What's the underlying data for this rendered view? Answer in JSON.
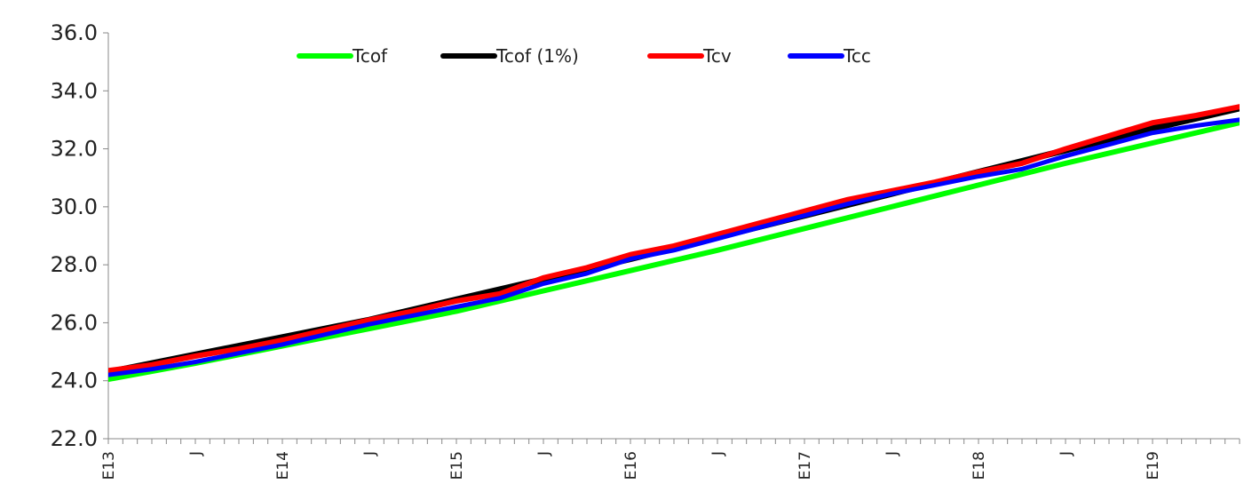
{
  "chart_data": {
    "type": "line",
    "title": "",
    "xlabel": "",
    "ylabel": "",
    "ylim": [
      22.0,
      36.0
    ],
    "y_ticks": [
      "22.0",
      "24.0",
      "26.0",
      "28.0",
      "30.0",
      "32.0",
      "34.0",
      "36.0"
    ],
    "x_tick_labels": [
      {
        "text": "E13",
        "x": 0
      },
      {
        "text": "J",
        "x": 0.5
      },
      {
        "text": "E14",
        "x": 1
      },
      {
        "text": "J",
        "x": 1.5
      },
      {
        "text": "E15",
        "x": 2
      },
      {
        "text": "J",
        "x": 2.5
      },
      {
        "text": "E16",
        "x": 3
      },
      {
        "text": "J",
        "x": 3.5
      },
      {
        "text": "E17",
        "x": 4
      },
      {
        "text": "J",
        "x": 4.5
      },
      {
        "text": "E18",
        "x": 5
      },
      {
        "text": "J",
        "x": 5.5
      },
      {
        "text": "E19",
        "x": 6
      }
    ],
    "x_range": [
      0,
      6.5
    ],
    "grid": false,
    "legend_position": "top",
    "series": [
      {
        "name": "Tcof",
        "color": "#00ff00",
        "x": [
          0,
          0.5,
          1,
          1.5,
          2,
          2.5,
          3,
          3.5,
          4,
          4.5,
          5,
          5.5,
          6,
          6.5
        ],
        "y": [
          24.05,
          24.6,
          25.2,
          25.8,
          26.4,
          27.1,
          27.8,
          28.5,
          29.25,
          30.0,
          30.75,
          31.5,
          32.2,
          32.9
        ]
      },
      {
        "name": "Tcof (1%)",
        "color": "#000000",
        "x": [
          0,
          0.5,
          1,
          1.5,
          2,
          2.5,
          3,
          3.5,
          4,
          4.5,
          5,
          5.5,
          6,
          6.5
        ],
        "y": [
          24.3,
          24.9,
          25.5,
          26.1,
          26.8,
          27.5,
          28.2,
          28.95,
          29.7,
          30.45,
          31.2,
          31.95,
          32.7,
          33.4
        ]
      },
      {
        "name": "Tcv",
        "color": "#ff0000",
        "x": [
          0,
          0.25,
          0.5,
          0.75,
          1,
          1.25,
          1.5,
          1.75,
          2,
          2.25,
          2.5,
          2.75,
          3,
          3.25,
          3.5,
          3.75,
          4,
          4.25,
          4.5,
          4.75,
          5,
          5.25,
          5.5,
          5.75,
          6,
          6.25,
          6.5
        ],
        "y": [
          24.35,
          24.55,
          24.85,
          25.1,
          25.4,
          25.75,
          26.1,
          26.4,
          26.75,
          27.0,
          27.55,
          27.9,
          28.35,
          28.65,
          29.05,
          29.45,
          29.85,
          30.25,
          30.55,
          30.85,
          31.2,
          31.5,
          32.0,
          32.45,
          32.9,
          33.15,
          33.45
        ]
      },
      {
        "name": "Tcc",
        "color": "#0000ff",
        "x": [
          0,
          0.25,
          0.5,
          0.75,
          1,
          1.25,
          1.5,
          1.75,
          2,
          2.25,
          2.5,
          2.75,
          3,
          3.25,
          3.5,
          3.75,
          4,
          4.25,
          4.5,
          4.75,
          5,
          5.25,
          5.5,
          5.75,
          6,
          6.25,
          6.5
        ],
        "y": [
          24.2,
          24.4,
          24.65,
          24.95,
          25.25,
          25.6,
          25.95,
          26.25,
          26.55,
          26.85,
          27.35,
          27.7,
          28.2,
          28.5,
          28.9,
          29.3,
          29.7,
          30.1,
          30.45,
          30.75,
          31.05,
          31.3,
          31.75,
          32.15,
          32.55,
          32.8,
          33.0
        ]
      }
    ]
  }
}
